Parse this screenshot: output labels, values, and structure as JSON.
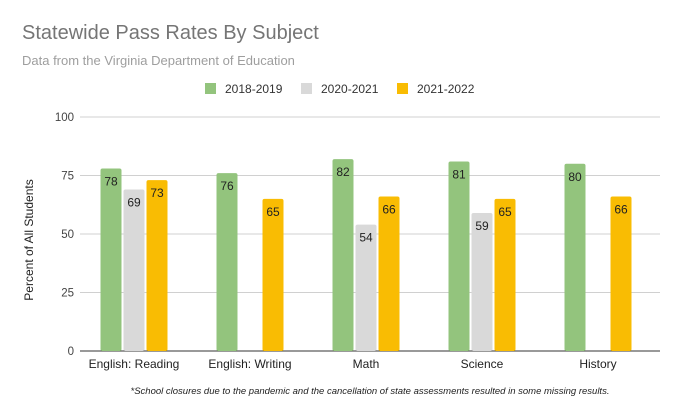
{
  "chart_data": {
    "type": "bar",
    "title": "Statewide Pass Rates By Subject",
    "subtitle": "Data from the Virginia Department of Education",
    "xlabel": "",
    "ylabel": "Percent of All Students",
    "ylim": [
      0,
      100
    ],
    "yticks": [
      0,
      25,
      50,
      75,
      100
    ],
    "grid": true,
    "legend_position": "top",
    "categories": [
      "English: Reading",
      "English: Writing",
      "Math",
      "Science",
      "History"
    ],
    "series": [
      {
        "name": "2018-2019",
        "color": "#93c47d",
        "values": [
          78,
          76,
          82,
          81,
          80
        ]
      },
      {
        "name": "2020-2021",
        "color": "#d9d9d9",
        "values": [
          69,
          null,
          54,
          59,
          null
        ]
      },
      {
        "name": "2021-2022",
        "color": "#f9bc03",
        "values": [
          73,
          65,
          66,
          65,
          66
        ]
      }
    ],
    "footnote": "*School closures due to the pandemic and the cancellation of state assessments resulted in some missing results."
  }
}
